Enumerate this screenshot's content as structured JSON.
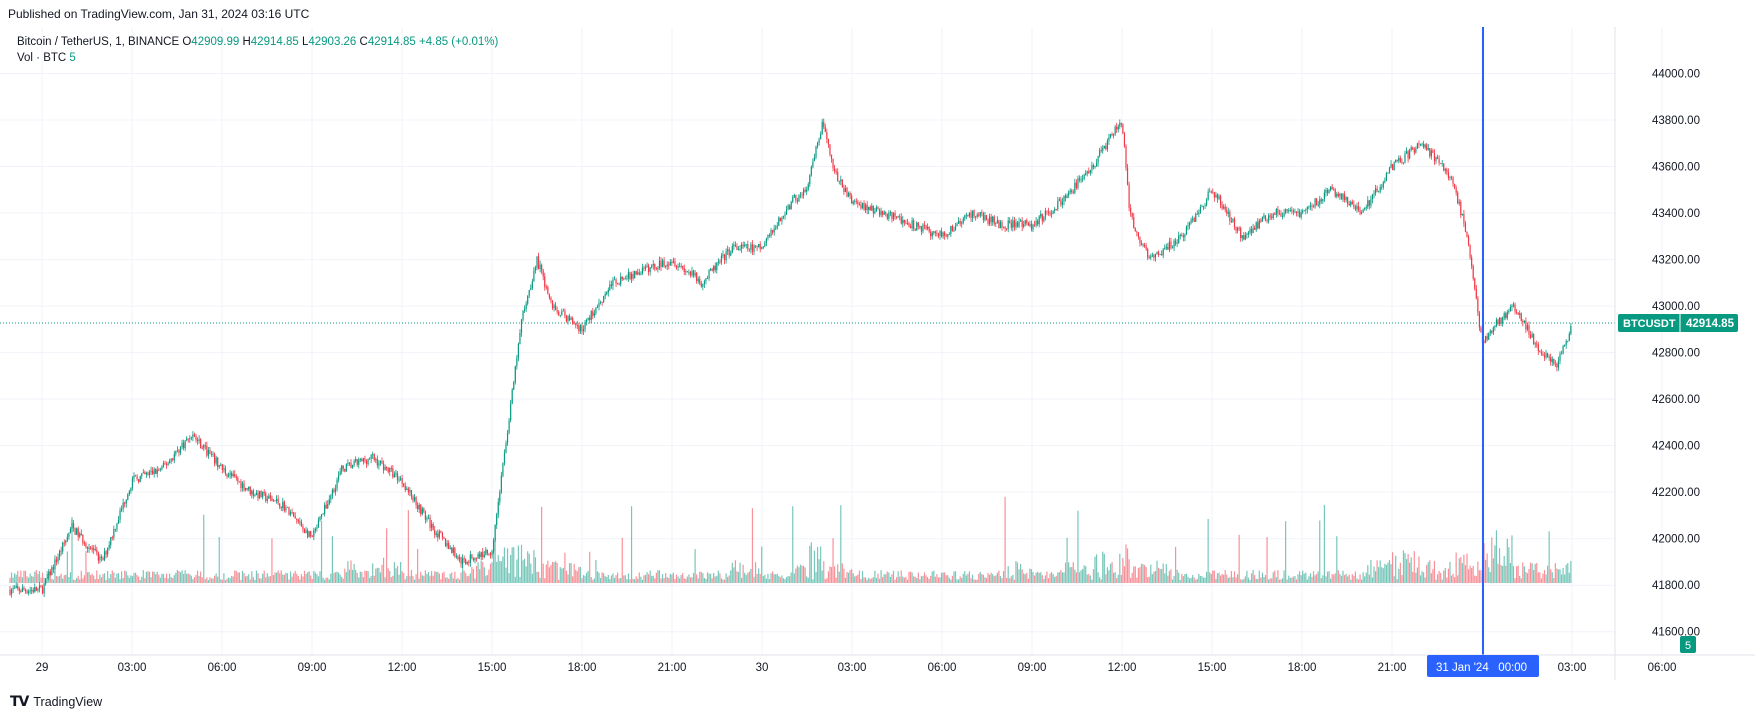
{
  "published": "Published on TradingView.com, Jan 31, 2024 03:16 UTC",
  "legend": {
    "symbol": "Bitcoin / TetherUS, 1, BINANCE",
    "o_label": "O",
    "o": "42909.99",
    "h_label": "H",
    "h": "42914.85",
    "l_label": "L",
    "l": "42903.26",
    "c_label": "C",
    "c": "42914.85",
    "change": "+4.85 (+0.01%)",
    "vol_label": "Vol · BTC",
    "vol_value": "5"
  },
  "badges": {
    "symbol": "BTCUSDT",
    "price": "42914.85",
    "volume": "5",
    "crosshair_time": "31 Jan '24   00:00"
  },
  "brand": "TradingView",
  "colors": {
    "up": "#089981",
    "down": "#f23645",
    "crosshair": "#2962ff",
    "grid": "#f0f3fa"
  },
  "chart_data": {
    "type": "candlestick",
    "ylim": [
      41500,
      44200
    ],
    "y_ticks": [
      "41600.00",
      "41800.00",
      "42000.00",
      "42200.00",
      "42400.00",
      "42600.00",
      "42800.00",
      "43000.00",
      "43200.00",
      "43400.00",
      "43600.00",
      "43800.00",
      "44000.00"
    ],
    "x_ticks": [
      "29",
      "03:00",
      "06:00",
      "09:00",
      "12:00",
      "15:00",
      "18:00",
      "21:00",
      "30",
      "03:00",
      "06:00",
      "09:00",
      "12:00",
      "15:00",
      "18:00",
      "21:00",
      "31 Jan '24",
      "03:00",
      "06:00"
    ],
    "last_price": 42914.85,
    "series": [
      {
        "name": "close",
        "x": [
          "29 00:00",
          "29 01:00",
          "29 02:00",
          "29 03:00",
          "29 04:00",
          "29 05:00",
          "29 06:00",
          "29 07:00",
          "29 08:00",
          "29 09:00",
          "29 10:00",
          "29 11:00",
          "29 12:00",
          "29 13:00",
          "29 14:00",
          "29 15:00",
          "29 15:30",
          "29 16:00",
          "29 16:30",
          "29 17:00",
          "29 18:00",
          "29 19:00",
          "29 20:00",
          "29 21:00",
          "29 22:00",
          "29 23:00",
          "30 00:00",
          "30 01:00",
          "30 01:30",
          "30 02:00",
          "30 02:30",
          "30 03:00",
          "30 04:00",
          "30 05:00",
          "30 06:00",
          "30 07:00",
          "30 08:00",
          "30 09:00",
          "30 10:00",
          "30 11:00",
          "30 12:00",
          "30 12:15",
          "30 12:30",
          "30 13:00",
          "30 14:00",
          "30 15:00",
          "30 16:00",
          "30 17:00",
          "30 18:00",
          "30 19:00",
          "30 20:00",
          "30 21:00",
          "30 22:00",
          "30 23:00",
          "30 23:30",
          "31 00:00",
          "31 01:00",
          "31 02:00",
          "31 02:30",
          "31 03:00"
        ],
        "values": [
          41780,
          42050,
          41900,
          42250,
          42300,
          42450,
          42300,
          42200,
          42150,
          42000,
          42300,
          42350,
          42250,
          42050,
          41900,
          41950,
          42450,
          42950,
          43200,
          43000,
          42900,
          43100,
          43150,
          43200,
          43100,
          43250,
          43250,
          43450,
          43500,
          43780,
          43550,
          43450,
          43400,
          43350,
          43300,
          43400,
          43350,
          43350,
          43450,
          43600,
          43800,
          43400,
          43300,
          43200,
          43300,
          43500,
          43300,
          43400,
          43400,
          43500,
          43400,
          43600,
          43700,
          43550,
          43300,
          42850,
          43000,
          42800,
          42750,
          42915
        ]
      },
      {
        "name": "volume",
        "values": [
          1,
          1,
          1,
          1,
          1,
          1,
          1,
          1,
          1,
          1,
          2,
          2,
          1,
          1,
          2,
          5,
          4,
          3,
          2,
          2,
          1,
          1,
          1,
          1,
          1,
          2,
          1,
          2,
          4,
          2,
          2,
          1,
          1,
          1,
          1,
          1,
          2,
          1,
          2,
          3,
          4,
          2,
          2,
          2,
          1,
          1,
          1,
          1,
          1,
          1,
          2,
          3,
          2,
          3,
          2,
          5,
          2,
          2,
          2,
          5
        ]
      }
    ]
  }
}
